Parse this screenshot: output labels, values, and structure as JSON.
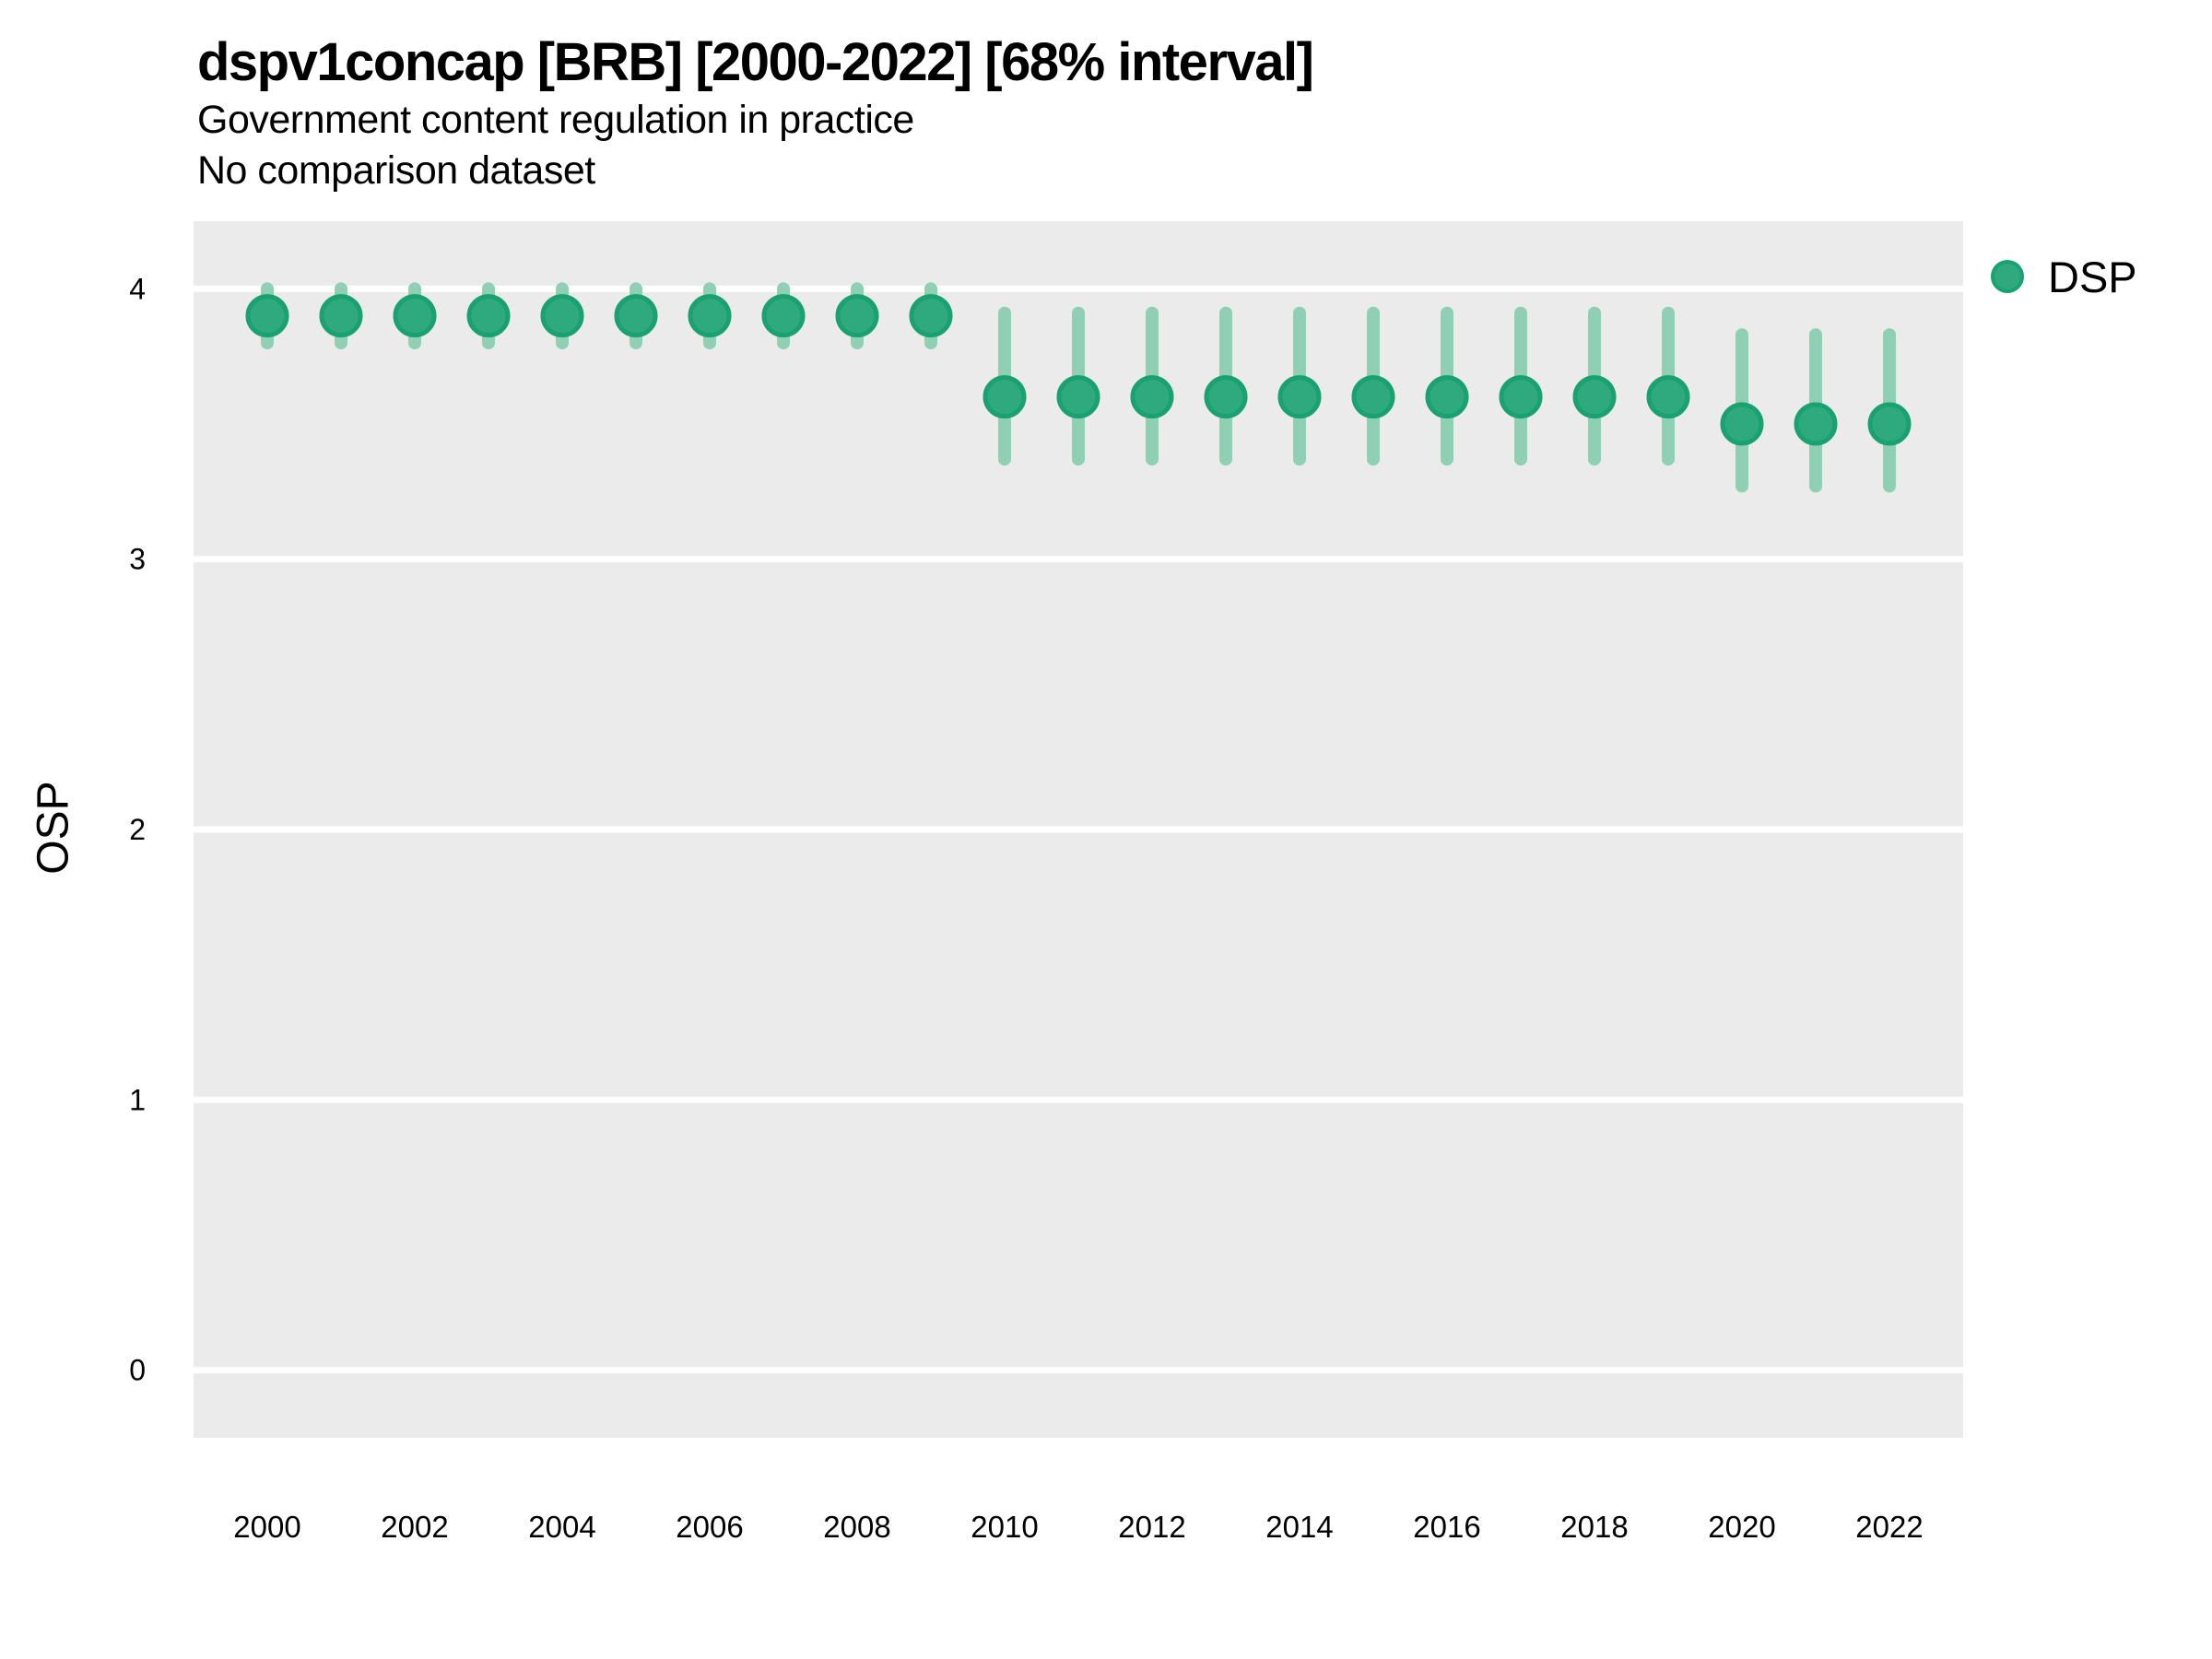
{
  "header": {
    "title": "dspv1concap [BRB] [2000-2022] [68% interval]",
    "subtitle": "Government content regulation in practice",
    "note": "No comparison dataset"
  },
  "legend": {
    "label": "DSP"
  },
  "colors": {
    "point_fill": "#2FAA7E",
    "point_stroke": "#1AA171",
    "interval_bar": "#8FD0B5",
    "panel_background": "#EBEBEB",
    "gridline": "#FFFFFF",
    "text": "#000000",
    "background": "#FFFFFF"
  },
  "chart_data": {
    "type": "pointrange",
    "title": "dspv1concap [BRB] [2000-2022] [68% interval]",
    "subtitle": "Government content regulation in practice",
    "note": "No comparison dataset",
    "xlabel": "",
    "ylabel": "OSP",
    "legend_entries": [
      "DSP"
    ],
    "legend_position": "right-top",
    "grid": "horizontal-major-only",
    "ylim": [
      -0.25,
      4.25
    ],
    "yticks": [
      0,
      1,
      2,
      3,
      4
    ],
    "xticks": [
      2000,
      2002,
      2004,
      2006,
      2008,
      2010,
      2012,
      2014,
      2016,
      2018,
      2020,
      2022
    ],
    "x": [
      2000,
      2001,
      2002,
      2003,
      2004,
      2005,
      2006,
      2007,
      2008,
      2009,
      2010,
      2011,
      2012,
      2013,
      2014,
      2015,
      2016,
      2017,
      2018,
      2019,
      2020,
      2021,
      2022
    ],
    "series": [
      {
        "name": "DSP",
        "estimate": [
          3.9,
          3.9,
          3.9,
          3.9,
          3.9,
          3.9,
          3.9,
          3.9,
          3.9,
          3.9,
          3.6,
          3.6,
          3.6,
          3.6,
          3.6,
          3.6,
          3.6,
          3.6,
          3.6,
          3.6,
          3.5,
          3.5,
          3.5
        ],
        "lower": [
          3.8,
          3.8,
          3.8,
          3.8,
          3.8,
          3.8,
          3.8,
          3.8,
          3.8,
          3.8,
          3.37,
          3.37,
          3.37,
          3.37,
          3.37,
          3.37,
          3.37,
          3.37,
          3.37,
          3.37,
          3.27,
          3.27,
          3.27
        ],
        "upper": [
          4.0,
          4.0,
          4.0,
          4.0,
          4.0,
          4.0,
          4.0,
          4.0,
          4.0,
          4.0,
          3.91,
          3.91,
          3.91,
          3.91,
          3.91,
          3.91,
          3.91,
          3.91,
          3.91,
          3.91,
          3.83,
          3.83,
          3.83
        ]
      }
    ]
  }
}
